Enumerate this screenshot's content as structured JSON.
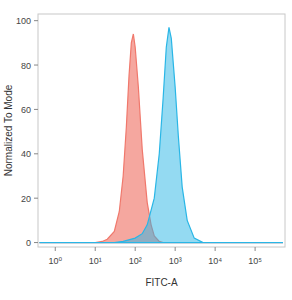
{
  "chart_data": {
    "type": "area",
    "log": "x",
    "grid": false,
    "x_label": "FITC-A",
    "y_label": "Normalized To Mode",
    "xlim": [
      0.37,
      560000
    ],
    "ylim": [
      -2,
      103
    ],
    "xticks": [
      {
        "value": 1,
        "label": "10⁰"
      },
      {
        "value": 10,
        "label": "10¹"
      },
      {
        "value": 100,
        "label": "10²"
      },
      {
        "value": 1000,
        "label": "10³"
      },
      {
        "value": 10000,
        "label": "10⁴"
      },
      {
        "value": 100000,
        "label": "10⁵"
      }
    ],
    "yticks": [
      0,
      20,
      40,
      60,
      80,
      100
    ],
    "series": [
      {
        "color": "#f0786c",
        "x": [
          0.4,
          10,
          15,
          20,
          30,
          40,
          50,
          60,
          70,
          80,
          90,
          100,
          120,
          150,
          200,
          250,
          300,
          400,
          500,
          500000
        ],
        "values": [
          0,
          0,
          0.5,
          1.5,
          5,
          14,
          30,
          52,
          75,
          90,
          94,
          88,
          70,
          42,
          18,
          8,
          3,
          0.5,
          0,
          0
        ]
      },
      {
        "color": "#29b6e6",
        "x": [
          0.4,
          30,
          50,
          100,
          150,
          200,
          300,
          400,
          500,
          600,
          700,
          800,
          1000,
          1200,
          1500,
          2000,
          3000,
          5000,
          500000
        ],
        "values": [
          0,
          0,
          0.5,
          2,
          4,
          8,
          20,
          40,
          65,
          88,
          97,
          92,
          70,
          48,
          25,
          10,
          2,
          0,
          0
        ]
      }
    ]
  }
}
